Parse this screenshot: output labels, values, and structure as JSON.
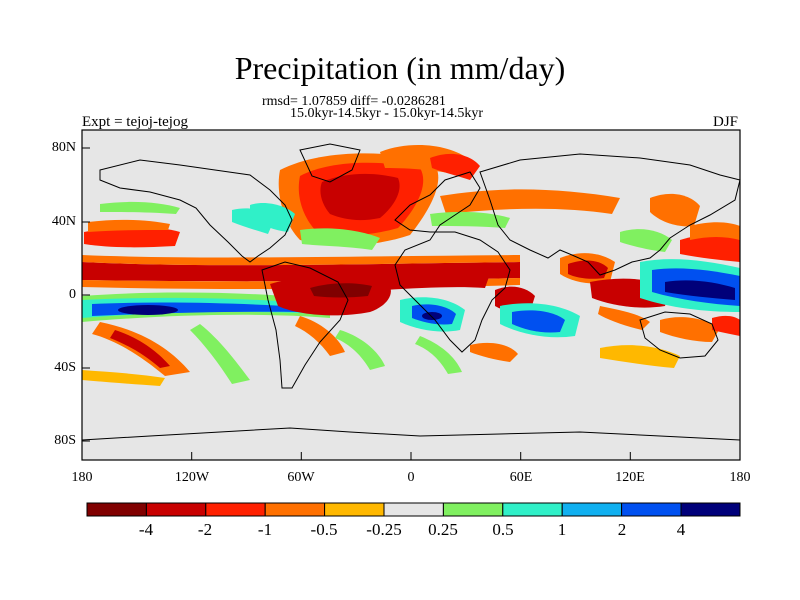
{
  "header": {
    "title": "Precipitation (in mm/day)",
    "stats": "rmsd= 1.07859 diff= -0.0286281",
    "period": "15.0kyr-14.5kyr - 15.0kyr-14.5kyr",
    "expt": "Expt = tejoj-tejog",
    "season": "DJF"
  },
  "axes": {
    "y_labels": [
      "80N",
      "40N",
      "0",
      "40S",
      "80S"
    ],
    "x_labels": [
      "180",
      "120W",
      "60W",
      "0",
      "60E",
      "120E",
      "180"
    ]
  },
  "colorbar": {
    "labels": [
      "-4",
      "-2",
      "-1",
      "-0.5",
      "-0.25",
      "0.25",
      "0.5",
      "1",
      "2",
      "4"
    ],
    "colors": [
      "#800000",
      "#c80000",
      "#ff2000",
      "#ff7000",
      "#ffb800",
      "#e6e6e6",
      "#80f060",
      "#30f0c8",
      "#10b0f0",
      "#0050f0",
      "#00007a"
    ]
  },
  "palette": {
    "ocean_bg": "#e6e6e6",
    "dark_red": "#800000",
    "red": "#c80000",
    "orange_red": "#ff2000",
    "orange": "#ff7000",
    "yellow": "#ffb800",
    "green": "#80f060",
    "cyan": "#30f0c8",
    "light_blue": "#10b0f0",
    "blue": "#0050f0",
    "navy": "#00007a"
  }
}
